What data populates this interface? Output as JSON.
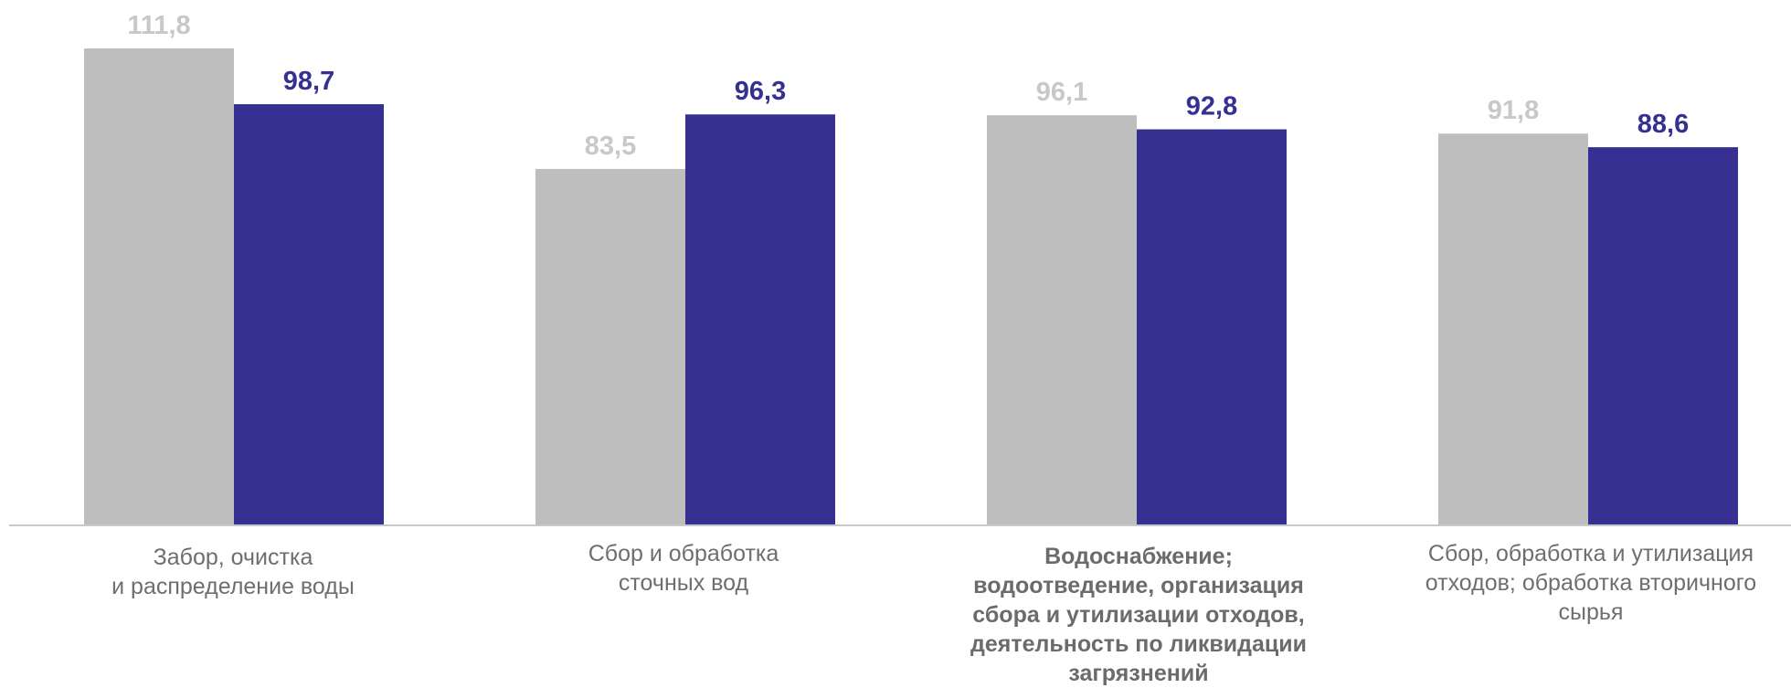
{
  "chart_data": {
    "type": "bar",
    "categories": [
      "Забор, очистка\nи распределение воды",
      "Сбор и обработка\nсточных вод",
      "Водоснабжение;\nводоотведение, организация\nсбора и утилизации отходов,\nдеятельность по ликвидации\nзагрязнений",
      "Сбор, обработка и утилизация\nотходов; обработка вторичного\nсырья"
    ],
    "category_emphasis": [
      false,
      false,
      true,
      false
    ],
    "series": [
      {
        "values": [
          111.8,
          83.5,
          96.1,
          91.8
        ],
        "labels": [
          "111,8",
          "83,5",
          "96,1",
          "91,8"
        ],
        "color": "#bebebe",
        "label_color": "#c8c8c8"
      },
      {
        "values": [
          98.7,
          96.3,
          92.8,
          88.6
        ],
        "labels": [
          "98,7",
          "96,3",
          "92,8",
          "88,6"
        ],
        "color": "#363092",
        "label_color": "#363092"
      }
    ],
    "title": "",
    "xlabel": "",
    "ylabel": "",
    "ylim": [
      0,
      111.8
    ],
    "grid": false,
    "legend": "none",
    "axis_color": "#c8c8c8"
  }
}
